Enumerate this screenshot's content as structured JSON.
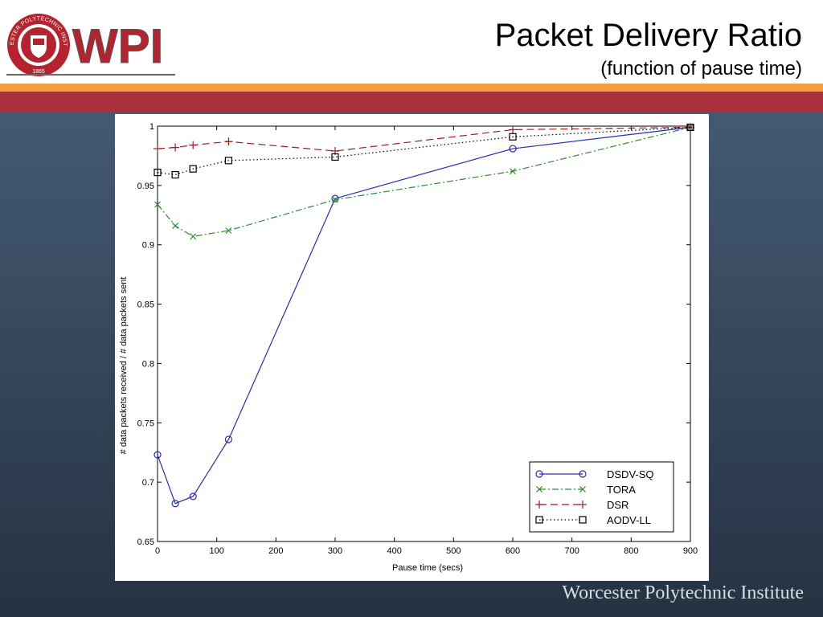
{
  "header": {
    "title": "Packet Delivery Ratio",
    "subtitle": "(function of pause time)"
  },
  "logo": {
    "wordmark": "WPI",
    "seal_text": "WORCESTER POLYTECHNIC INSTITUTE",
    "seal_year": "1865",
    "colors": {
      "red": "#b5232f",
      "gray": "#555555"
    }
  },
  "footer": {
    "text": "Worcester Polytechnic Institute"
  },
  "chart_data": {
    "type": "line",
    "xlabel": "Pause time (secs)",
    "ylabel": "# data packets received / # data packets sent",
    "xlim": [
      0,
      900
    ],
    "ylim": [
      0.65,
      1
    ],
    "xticks": [
      0,
      100,
      200,
      300,
      400,
      500,
      600,
      700,
      800,
      900
    ],
    "yticks": [
      0.65,
      0.7,
      0.75,
      0.8,
      0.85,
      0.9,
      0.95,
      1
    ],
    "grid": false,
    "legend_position": "bottom-right",
    "series": [
      {
        "name": "DSDV-SQ",
        "color": "#2a2ab8",
        "dash": "",
        "marker": "circle",
        "x": [
          0,
          30,
          60,
          120,
          300,
          600,
          900
        ],
        "y": [
          0.723,
          0.682,
          0.688,
          0.736,
          0.939,
          0.981,
          0.999
        ]
      },
      {
        "name": "TORA",
        "color": "#2f8a2f",
        "dash": "8,3,2,3",
        "marker": "x",
        "x": [
          0,
          30,
          60,
          120,
          300,
          600,
          900
        ],
        "y": [
          0.934,
          0.916,
          0.907,
          0.912,
          0.938,
          0.962,
          0.999
        ]
      },
      {
        "name": "DSR",
        "color": "#9a1f1f",
        "dash": "9,5",
        "marker": "plus",
        "x": [
          0,
          30,
          60,
          120,
          300,
          600,
          900
        ],
        "y": [
          0.981,
          0.982,
          0.984,
          0.987,
          0.979,
          0.997,
          0.999
        ]
      },
      {
        "name": "AODV-LL",
        "color": "#000000",
        "dash": "1.5,3",
        "marker": "square",
        "x": [
          0,
          30,
          60,
          120,
          300,
          600,
          900
        ],
        "y": [
          0.961,
          0.959,
          0.964,
          0.971,
          0.974,
          0.991,
          0.999
        ]
      }
    ]
  }
}
